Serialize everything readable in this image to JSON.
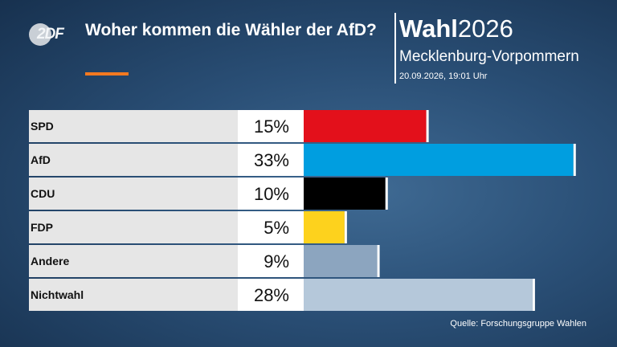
{
  "header": {
    "logo_text": "2DF",
    "title": "Woher kommen die Wähler der AfD?",
    "brand_bold": "Wahl",
    "brand_year": "2026",
    "region": "Mecklenburg-Vorpommern",
    "timestamp": "20.09.2026, 19:01 Uhr"
  },
  "footer": {
    "source": "Quelle: Forschungsgruppe Wahlen"
  },
  "chart_data": {
    "type": "bar",
    "orientation": "horizontal",
    "categories": [
      "SPD",
      "AfD",
      "CDU",
      "FDP",
      "Andere",
      "Nichtwahl"
    ],
    "values": [
      15,
      33,
      10,
      5,
      9,
      28
    ],
    "value_labels": [
      "15%",
      "33%",
      "10%",
      "5%",
      "9%",
      "28%"
    ],
    "colors": [
      "#e3101b",
      "#009ee0",
      "#000000",
      "#fdd21d",
      "#8ca5bf",
      "#b5c8da"
    ],
    "unit": "%",
    "xlim": [
      0,
      34.3
    ]
  }
}
